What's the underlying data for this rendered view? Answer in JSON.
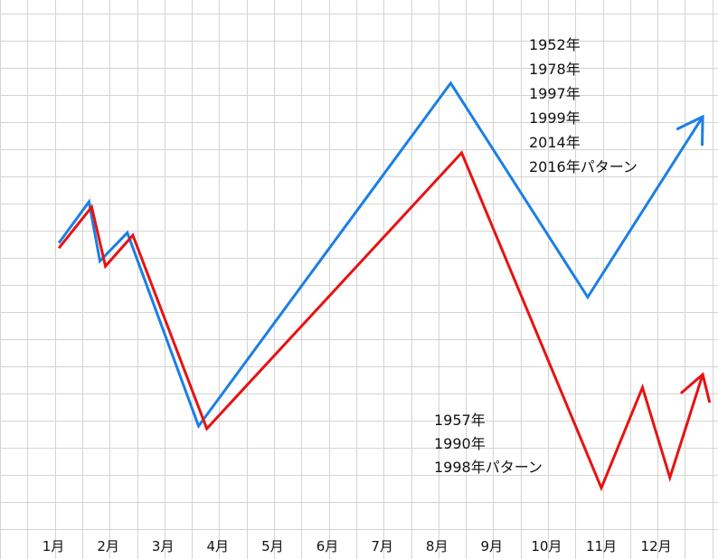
{
  "chart_data": {
    "type": "line",
    "title": "",
    "xlabel": "",
    "ylabel": "",
    "grid": true,
    "x_ticks": [
      "1月",
      "2月",
      "3月",
      "4月",
      "5月",
      "6月",
      "7月",
      "8月",
      "9月",
      "10月",
      "11月",
      "12月"
    ],
    "xlim": [
      0.95,
      12.95
    ],
    "ylim": [
      0,
      100
    ],
    "series": [
      {
        "color": "#1a7fe6",
        "points": [
          [
            1.1,
            55.5
          ],
          [
            1.65,
            63.5
          ],
          [
            1.85,
            52
          ],
          [
            2.35,
            57.5
          ],
          [
            3.65,
            20
          ],
          [
            8.25,
            86.5
          ],
          [
            10.75,
            45
          ],
          [
            12.85,
            80
          ]
        ],
        "arrow": true
      },
      {
        "color": "#e81212",
        "points": [
          [
            1.1,
            54.5
          ],
          [
            1.7,
            62.5
          ],
          [
            1.95,
            51
          ],
          [
            2.45,
            57
          ],
          [
            3.8,
            19.5
          ],
          [
            8.45,
            73
          ],
          [
            11.0,
            8
          ],
          [
            11.75,
            27.5
          ],
          [
            12.25,
            10
          ],
          [
            12.85,
            30
          ]
        ],
        "arrow": true
      }
    ],
    "annotations": [
      {
        "series_index": 0,
        "lines": [
          "1952年",
          "1978年",
          "1997年",
          "1999年",
          "2014年",
          "2016年パターン"
        ]
      },
      {
        "series_index": 1,
        "lines": [
          "1957年",
          "1990年",
          "1998年パターン"
        ]
      }
    ]
  }
}
